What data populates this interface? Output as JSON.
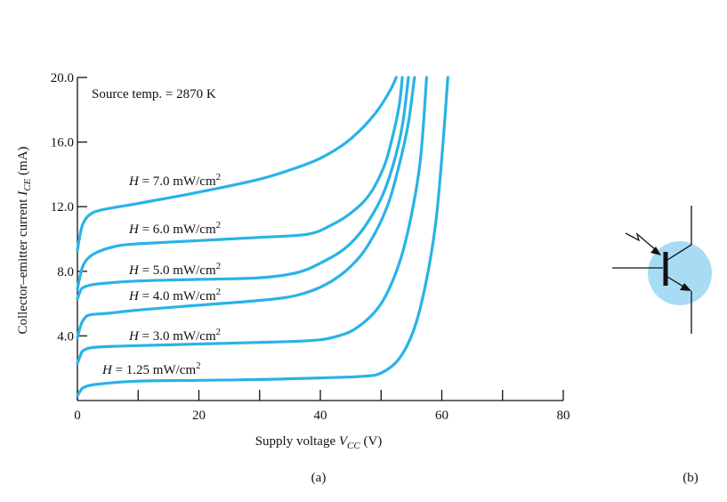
{
  "chart_data": {
    "type": "line",
    "annotation": "Source temp. = 2870 K",
    "xlabel": {
      "prefix": "Supply voltage ",
      "var": "V",
      "sub": "CC",
      "unit": " (V)"
    },
    "ylabel": {
      "prefix": "Collector–emitter current ",
      "var": "I",
      "sub": "CE",
      "unit": " (mA)"
    },
    "xlim": [
      0,
      80
    ],
    "ylim": [
      0,
      20
    ],
    "x_ticks": [
      0,
      20,
      40,
      60,
      80
    ],
    "x_tick_labels": [
      "0",
      "20",
      "40",
      "60",
      "80"
    ],
    "x_minor_ticks": [
      10,
      30,
      50,
      70
    ],
    "y_ticks": [
      4,
      8,
      12,
      16,
      20
    ],
    "y_tick_labels": [
      "4.0",
      "8.0",
      "12.0",
      "16.0",
      "20.0"
    ],
    "curve_color": "#29b3e6",
    "series": [
      {
        "name": "H = 7.0 mW/cm2",
        "label": {
          "prefix": "H",
          "text": " = 7.0 mW/cm",
          "sup": "2"
        },
        "points": [
          [
            0,
            9.3
          ],
          [
            0.5,
            10.4
          ],
          [
            1,
            11.0
          ],
          [
            2,
            11.5
          ],
          [
            4,
            11.8
          ],
          [
            10,
            12.2
          ],
          [
            20,
            12.9
          ],
          [
            30,
            13.7
          ],
          [
            36,
            14.4
          ],
          [
            40,
            15.0
          ],
          [
            44,
            15.9
          ],
          [
            47,
            16.9
          ],
          [
            49.5,
            18.0
          ],
          [
            51.5,
            19.2
          ],
          [
            52.5,
            20.0
          ]
        ]
      },
      {
        "name": "H = 6.0 mW/cm2",
        "label": {
          "prefix": "H",
          "text": " = 6.0 mW/cm",
          "sup": "2"
        },
        "points": [
          [
            0,
            6.9
          ],
          [
            0.5,
            7.8
          ],
          [
            1,
            8.4
          ],
          [
            2,
            8.9
          ],
          [
            4,
            9.3
          ],
          [
            7,
            9.6
          ],
          [
            10,
            9.7
          ],
          [
            20,
            9.9
          ],
          [
            30,
            10.1
          ],
          [
            38,
            10.3
          ],
          [
            42,
            10.9
          ],
          [
            45,
            11.6
          ],
          [
            48,
            12.7
          ],
          [
            50.5,
            14.5
          ],
          [
            52,
            16.5
          ],
          [
            53,
            18.3
          ],
          [
            53.5,
            20.0
          ]
        ]
      },
      {
        "name": "H = 5.0 mW/cm2",
        "label": {
          "prefix": "H",
          "text": " = 5.0 mW/cm",
          "sup": "2"
        },
        "points": [
          [
            0,
            6.3
          ],
          [
            0.5,
            6.8
          ],
          [
            1,
            7.0
          ],
          [
            3,
            7.2
          ],
          [
            10,
            7.4
          ],
          [
            20,
            7.5
          ],
          [
            30,
            7.6
          ],
          [
            36,
            7.9
          ],
          [
            40,
            8.5
          ],
          [
            44,
            9.4
          ],
          [
            47,
            10.6
          ],
          [
            50,
            12.5
          ],
          [
            52,
            14.6
          ],
          [
            53.5,
            17.0
          ],
          [
            54.5,
            20.0
          ]
        ]
      },
      {
        "name": "H = 4.0 mW/cm2",
        "label": {
          "prefix": "H",
          "text": " = 4.0 mW/cm",
          "sup": "2"
        },
        "points": [
          [
            0,
            3.9
          ],
          [
            0.5,
            4.6
          ],
          [
            1,
            5.0
          ],
          [
            2,
            5.3
          ],
          [
            5,
            5.4
          ],
          [
            10,
            5.6
          ],
          [
            20,
            5.9
          ],
          [
            30,
            6.2
          ],
          [
            36,
            6.5
          ],
          [
            41,
            7.2
          ],
          [
            45,
            8.3
          ],
          [
            48,
            9.7
          ],
          [
            51,
            12.0
          ],
          [
            53,
            14.6
          ],
          [
            54.5,
            17.2
          ],
          [
            55.5,
            20.0
          ]
        ]
      },
      {
        "name": "H = 3.0 mW/cm2",
        "label": {
          "prefix": "H",
          "text": " = 3.0 mW/cm",
          "sup": "2"
        },
        "points": [
          [
            0,
            2.3
          ],
          [
            0.5,
            2.8
          ],
          [
            1,
            3.1
          ],
          [
            3,
            3.3
          ],
          [
            10,
            3.4
          ],
          [
            20,
            3.5
          ],
          [
            30,
            3.6
          ],
          [
            38,
            3.7
          ],
          [
            42,
            3.9
          ],
          [
            46,
            4.5
          ],
          [
            50,
            6.0
          ],
          [
            53,
            8.5
          ],
          [
            55,
            11.5
          ],
          [
            56.5,
            15.0
          ],
          [
            57.5,
            20.0
          ]
        ]
      },
      {
        "name": "H = 1.25 mW/cm2",
        "label": {
          "prefix": "H",
          "text": " = 1.25 mW/cm",
          "sup": "2"
        },
        "points": [
          [
            0,
            0.3
          ],
          [
            0.5,
            0.6
          ],
          [
            1,
            0.8
          ],
          [
            3,
            1.0
          ],
          [
            10,
            1.2
          ],
          [
            20,
            1.25
          ],
          [
            30,
            1.3
          ],
          [
            40,
            1.4
          ],
          [
            47,
            1.5
          ],
          [
            50,
            1.7
          ],
          [
            53,
            2.6
          ],
          [
            55.5,
            4.5
          ],
          [
            57.5,
            7.5
          ],
          [
            59,
            11.0
          ],
          [
            60,
            15.0
          ],
          [
            61,
            20.0
          ]
        ]
      }
    ],
    "panel_a_caption": "(a)"
  },
  "symbol": {
    "circle_color": "#a8dcf5",
    "caption": "(b)"
  }
}
